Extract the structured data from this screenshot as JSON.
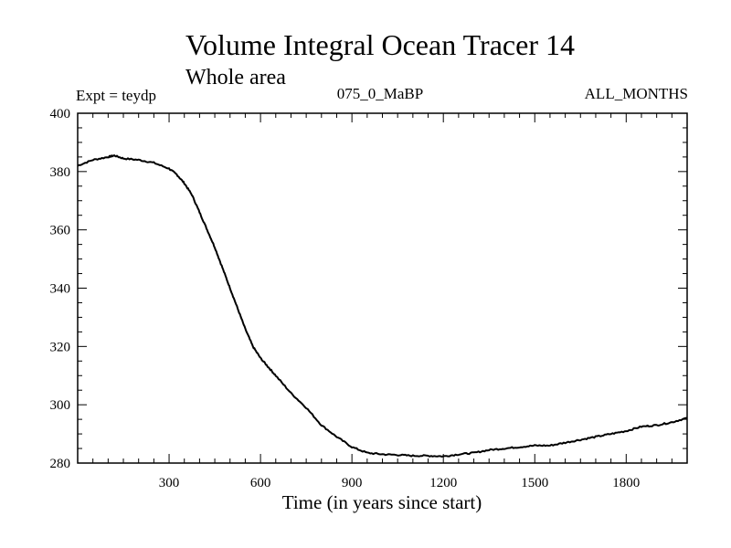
{
  "chart_data": {
    "type": "line",
    "title": "Volume Integral Ocean Tracer 14",
    "subtitle": "Whole area",
    "annotations": {
      "left": "Expt = teydp",
      "center": "075_0_MaBP",
      "right": "ALL_MONTHS"
    },
    "xlabel": "Time (in years since start)",
    "ylabel": "",
    "xlim": [
      0,
      2000
    ],
    "ylim": [
      280,
      400
    ],
    "x_ticks": [
      300,
      600,
      900,
      1200,
      1500,
      1800
    ],
    "x_tick_labels": [
      "300",
      "600",
      "900",
      "1200",
      "1500",
      "1800"
    ],
    "y_ticks": [
      280,
      300,
      320,
      340,
      360,
      380,
      400
    ],
    "y_tick_labels": [
      "280",
      "300",
      "320",
      "340",
      "360",
      "380",
      "400"
    ],
    "grid": false,
    "line_color": "#000000",
    "series": [
      {
        "name": "Tracer 14",
        "x": [
          0,
          50,
          100,
          120,
          150,
          200,
          250,
          300,
          325,
          350,
          375,
          400,
          425,
          450,
          475,
          500,
          525,
          550,
          575,
          600,
          625,
          650,
          700,
          750,
          800,
          850,
          900,
          950,
          1000,
          1050,
          1100,
          1150,
          1200,
          1250,
          1300,
          1350,
          1400,
          1450,
          1500,
          1550,
          1600,
          1650,
          1700,
          1750,
          1800,
          1850,
          1900,
          1950,
          2000
        ],
        "values": [
          382,
          384,
          385,
          385.5,
          384.5,
          384,
          383,
          381,
          379,
          376,
          372,
          366,
          360,
          354,
          347,
          340,
          333,
          326,
          320,
          316,
          313,
          310,
          304,
          299,
          293,
          289,
          285.5,
          283.5,
          283,
          282.8,
          282.5,
          282.5,
          282.3,
          283,
          283.5,
          284.5,
          285,
          285.5,
          286,
          286,
          287,
          288,
          289,
          290,
          291,
          292.5,
          293,
          294,
          295.5
        ]
      }
    ]
  }
}
